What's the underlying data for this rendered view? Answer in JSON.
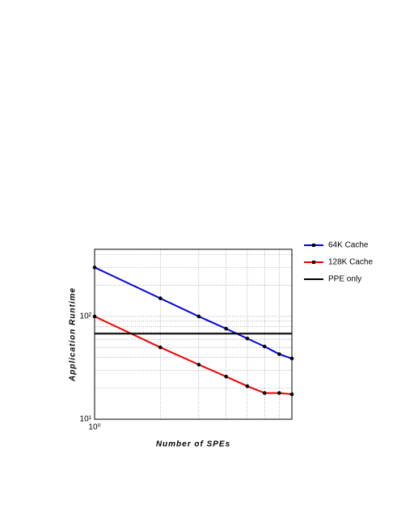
{
  "chart_data": {
    "type": "line",
    "x_label": "Number of SPEs",
    "y_label": "Application Runtime",
    "x": [
      1,
      2,
      3,
      4,
      5,
      6,
      7,
      8
    ],
    "series": [
      {
        "name": "64K Cache",
        "color": "#0000dd",
        "values": [
          300,
          150,
          100,
          76,
          61,
          51,
          43,
          39
        ]
      },
      {
        "name": "128K Cache",
        "color": "#ee0000",
        "values": [
          100,
          50,
          34,
          26,
          21,
          18,
          18,
          17.5
        ]
      },
      {
        "name": "PPE only",
        "color": "#000000",
        "value": 68
      }
    ],
    "log_x": true,
    "log_y": true,
    "xlim": [
      1,
      8
    ],
    "ylim": [
      10,
      450
    ],
    "xticks": [
      {
        "value": 1,
        "label": "10⁰"
      }
    ],
    "yticks": [
      {
        "value": 10,
        "label": "10¹"
      },
      {
        "value": 100,
        "label": "10²"
      }
    ],
    "x_grid": [
      2,
      3,
      4,
      5,
      6,
      7
    ],
    "y_grid": [
      20,
      30,
      40,
      50,
      60,
      70,
      80,
      90,
      200,
      300,
      400
    ],
    "grid": true,
    "legend": "outside-right"
  }
}
